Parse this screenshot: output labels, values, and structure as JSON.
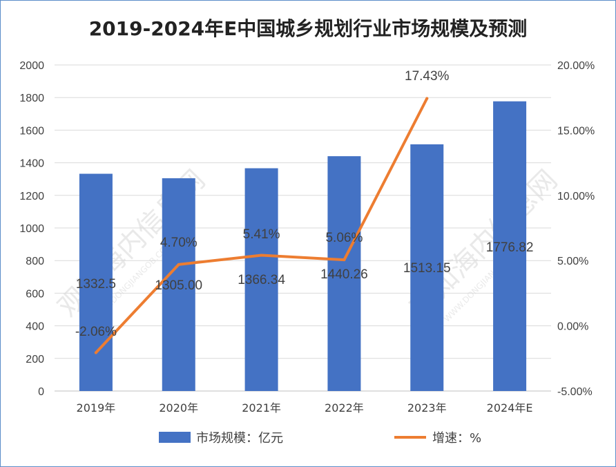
{
  "chart_data": {
    "type": "bar",
    "title": "2019-2024年E中国城乡规划行业市场规模及预测",
    "categories": [
      "2019年",
      "2020年",
      "2021年",
      "2022年",
      "2023年",
      "2024年E"
    ],
    "series": [
      {
        "name": "市场规模：亿元",
        "type": "bar",
        "axis": "left",
        "color": "#4472c4",
        "values": [
          1332.5,
          1305.0,
          1366.34,
          1440.26,
          1513.15,
          1776.82
        ],
        "labels": [
          "1332.5",
          "1305.00",
          "1366.34",
          "1440.26",
          "1513.15",
          "1776.82"
        ]
      },
      {
        "name": "增速：%",
        "type": "line",
        "axis": "right",
        "color": "#ed7d31",
        "values": [
          -2.06,
          4.7,
          5.41,
          5.06,
          17.43,
          null
        ],
        "labels": [
          "-2.06%",
          "4.70%",
          "5.41%",
          "5.06%",
          "17.43%",
          null
        ]
      }
    ],
    "left_axis": {
      "ylim": [
        0,
        2000
      ],
      "ticks": [
        0,
        200,
        400,
        600,
        800,
        1000,
        1200,
        1400,
        1600,
        1800,
        2000
      ],
      "tick_labels": [
        "0",
        "200",
        "400",
        "600",
        "800",
        "1000",
        "1200",
        "1400",
        "1600",
        "1800",
        "2000"
      ]
    },
    "right_axis": {
      "ylim": [
        -5,
        20
      ],
      "ticks": [
        -5,
        0,
        5,
        10,
        15,
        20
      ],
      "tick_labels": [
        "-5.00%",
        "0.00%",
        "5.00%",
        "10.00%",
        "15.00%",
        "20.00%"
      ]
    },
    "grid": true,
    "legend_position": "bottom"
  },
  "watermark": {
    "text": "观知海内信息网",
    "url_text": "WWW.DONGJIANGOB.COM"
  }
}
